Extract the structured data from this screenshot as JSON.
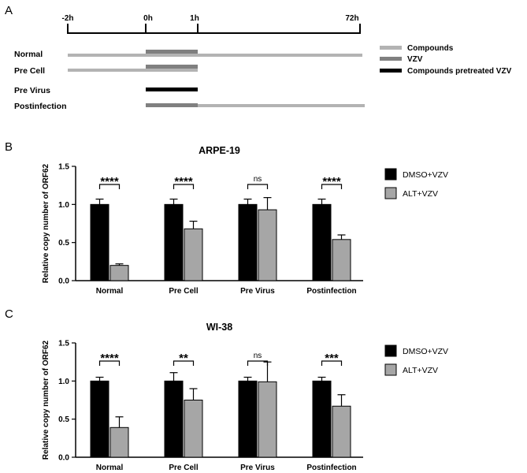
{
  "panels": {
    "a": "A",
    "b": "B",
    "c": "C"
  },
  "timeline": {
    "ticks": [
      "-2h",
      "0h",
      "1h",
      "72h"
    ],
    "tick_hours": [
      -2,
      0,
      1,
      72
    ],
    "rows": [
      {
        "label": "Normal",
        "segments": [
          {
            "kind": "compounds",
            "from": "-2h",
            "to": "72h"
          },
          {
            "kind": "vzv",
            "from": "0h",
            "to": "1h"
          }
        ]
      },
      {
        "label": "Pre Cell",
        "segments": [
          {
            "kind": "compounds",
            "from": "-2h",
            "to": "1h"
          },
          {
            "kind": "vzv",
            "from": "0h",
            "to": "1h"
          }
        ]
      },
      {
        "label": "Pre Virus",
        "segments": [
          {
            "kind": "pretreated",
            "from": "0h",
            "to": "1h"
          }
        ]
      },
      {
        "label": "Postinfection",
        "segments": [
          {
            "kind": "vzv",
            "from": "0h",
            "to": "1h"
          },
          {
            "kind": "compounds",
            "from": "1h",
            "to": "72h"
          }
        ]
      }
    ],
    "legend": [
      {
        "kind": "compounds",
        "label": "Compounds"
      },
      {
        "kind": "vzv",
        "label": "VZV"
      },
      {
        "kind": "pretreated",
        "label": "Compounds pretreated VZV"
      }
    ],
    "colors": {
      "compounds": "#b3b3b3",
      "vzv": "#808080",
      "pretreated": "#000000"
    }
  },
  "chart_data": [
    {
      "type": "bar",
      "title": "ARPE-19",
      "ylabel": "Relative copy number of ORF62",
      "xlabel": "",
      "ylim": [
        0,
        1.5
      ],
      "yticks": [
        "0.0",
        "0.5",
        "1.0",
        "1.5"
      ],
      "categories": [
        "Normal",
        "Pre Cell",
        "Pre Virus",
        "Postinfection"
      ],
      "series": [
        {
          "name": "DMSO+VZV",
          "color": "#000000",
          "values": [
            1.0,
            1.0,
            1.0,
            1.0
          ],
          "errors": [
            0.07,
            0.07,
            0.07,
            0.07
          ]
        },
        {
          "name": "ALT+VZV",
          "color": "#a6a6a6",
          "values": [
            0.2,
            0.68,
            0.93,
            0.54
          ],
          "errors": [
            0.02,
            0.1,
            0.16,
            0.06
          ]
        }
      ],
      "significance": [
        "****",
        "****",
        "ns",
        "****"
      ],
      "legend_position": "right"
    },
    {
      "type": "bar",
      "title": "WI-38",
      "ylabel": "Relative copy number of ORF62",
      "xlabel": "",
      "ylim": [
        0,
        1.5
      ],
      "yticks": [
        "0.0",
        "0.5",
        "1.0",
        "1.5"
      ],
      "categories": [
        "Normal",
        "Pre Cell",
        "Pre Virus",
        "Postinfection"
      ],
      "series": [
        {
          "name": "DMSO+VZV",
          "color": "#000000",
          "values": [
            1.0,
            1.0,
            1.0,
            1.0
          ],
          "errors": [
            0.05,
            0.11,
            0.05,
            0.05
          ]
        },
        {
          "name": "ALT+VZV",
          "color": "#a6a6a6",
          "values": [
            0.39,
            0.75,
            0.99,
            0.67
          ],
          "errors": [
            0.14,
            0.15,
            0.26,
            0.15
          ]
        }
      ],
      "significance": [
        "****",
        "**",
        "ns",
        "***"
      ],
      "legend_position": "right"
    }
  ]
}
